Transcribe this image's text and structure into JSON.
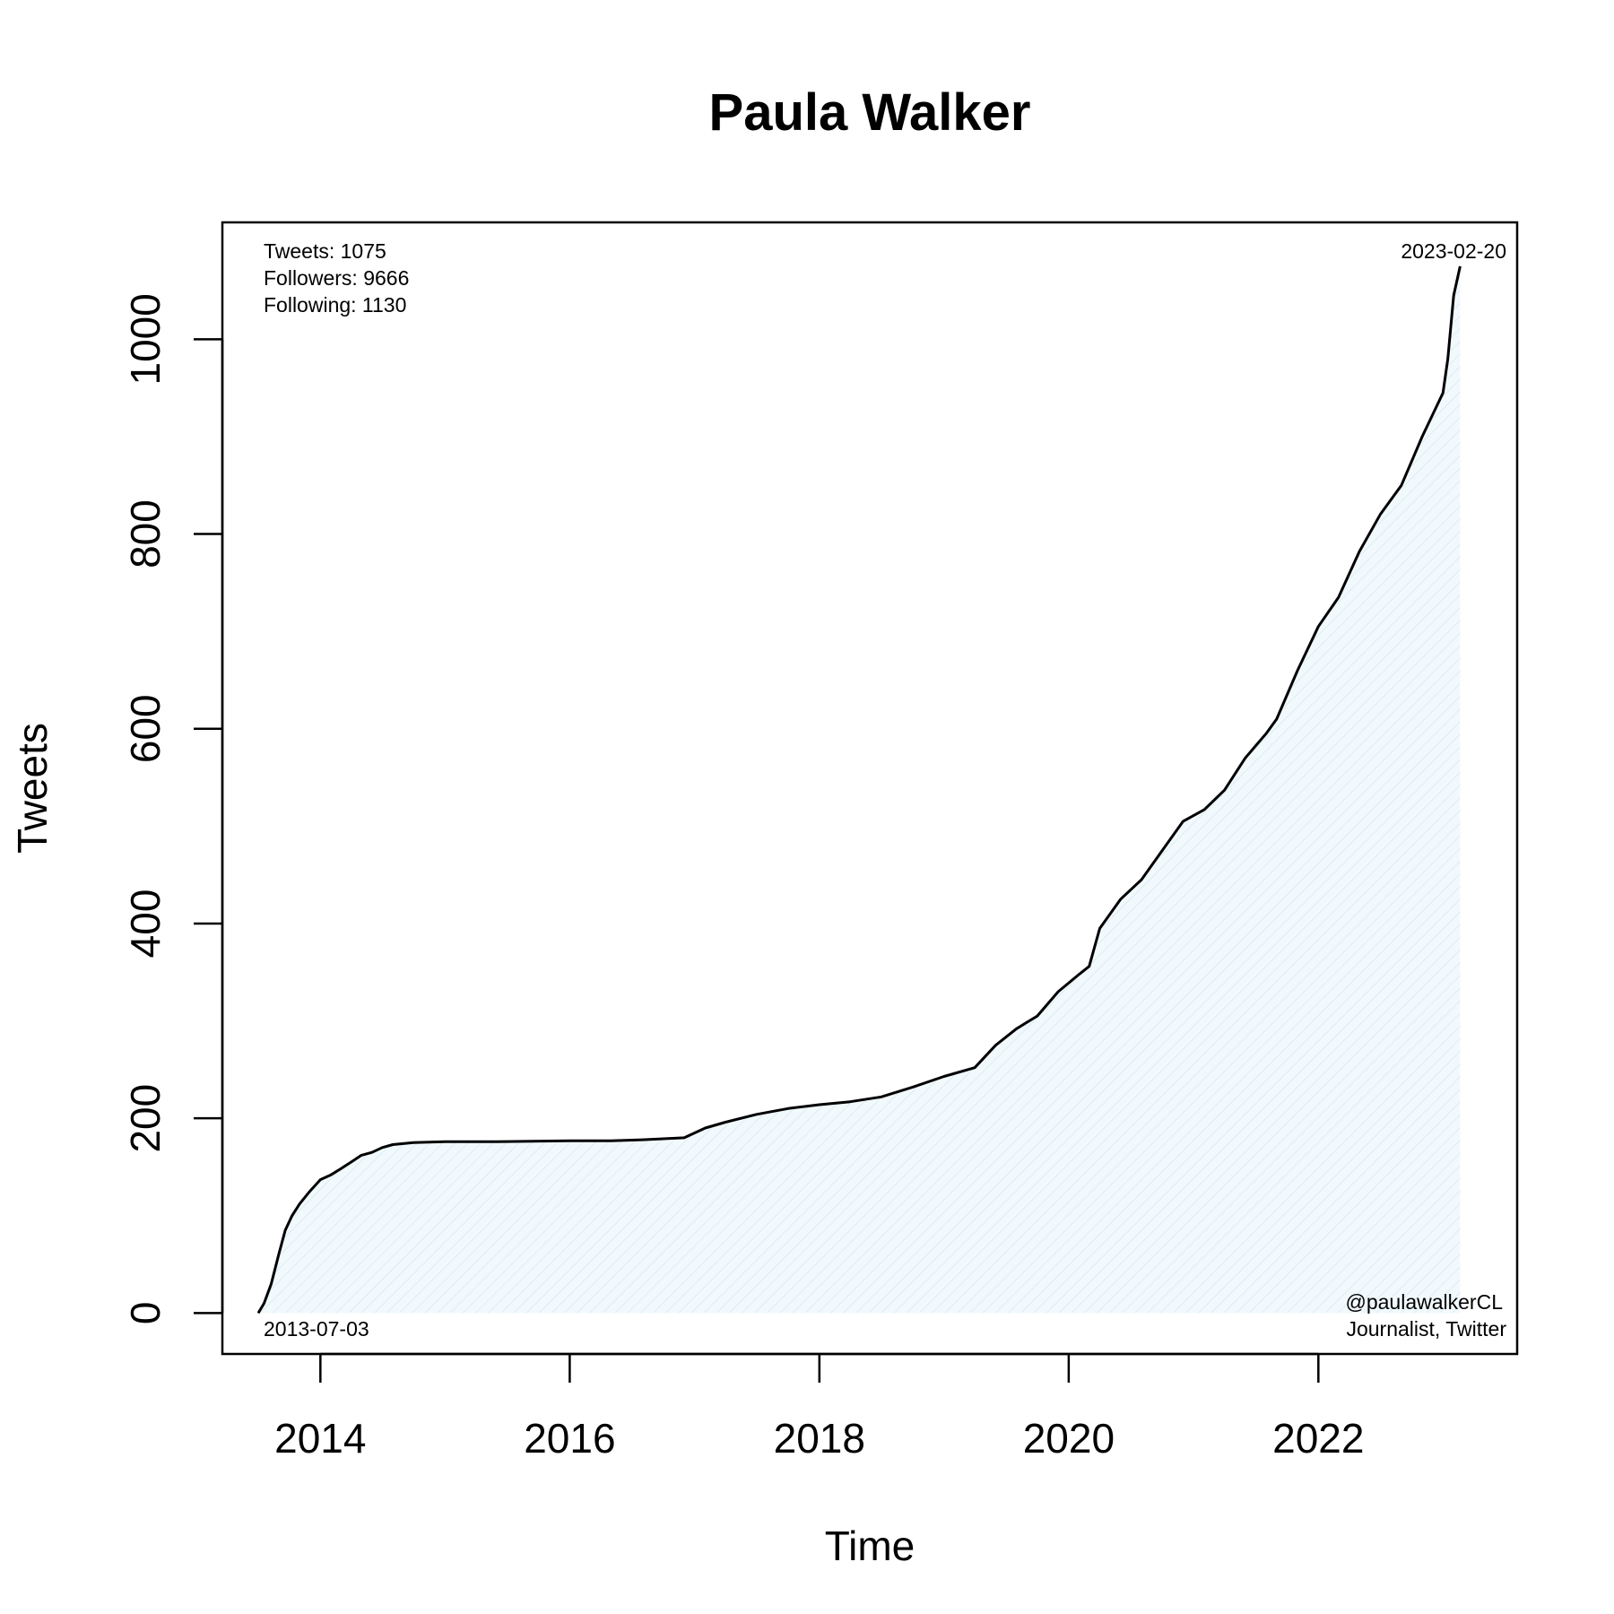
{
  "chart_data": {
    "type": "area",
    "title": "Paula Walker",
    "xlabel": "Time",
    "ylabel": "Tweets",
    "xlim": [
      "2013-03-20",
      "2023-08-06"
    ],
    "ylim": [
      -42,
      1120
    ],
    "x_ticks": [
      "2014",
      "2016",
      "2018",
      "2020",
      "2022"
    ],
    "y_ticks": [
      "0",
      "200",
      "400",
      "600",
      "800",
      "1000"
    ],
    "grid": false,
    "fill_color": "#e8f4f8",
    "line_color": "#000000",
    "stats": {
      "tweets": "Tweets: 1075",
      "followers": "Followers: 9666",
      "following": "Following: 1130"
    },
    "start_label": "2013-07-03",
    "end_label": "2023-02-20",
    "handle": "@paulawalkerCL",
    "description": "Journalist, Twitter",
    "series": [
      {
        "x": [
          "2013-07-03",
          "2013-07-20",
          "2013-08-10",
          "2013-09-01",
          "2013-09-20",
          "2013-10-10",
          "2013-11-01",
          "2013-12-01",
          "2014-01-01",
          "2014-02-01",
          "2014-03-01",
          "2014-04-01",
          "2014-05-01",
          "2014-06-01",
          "2014-07-01",
          "2014-08-01",
          "2014-10-01",
          "2015-01-01",
          "2015-06-01",
          "2016-01-01",
          "2016-05-01",
          "2016-08-01",
          "2016-12-01",
          "2017-02-01",
          "2017-04-01",
          "2017-07-01",
          "2017-10-01",
          "2018-01-01",
          "2018-04-01",
          "2018-07-01",
          "2018-10-01",
          "2019-01-01",
          "2019-04-01",
          "2019-06-01",
          "2019-08-01",
          "2019-10-01",
          "2019-12-01",
          "2020-02-01",
          "2020-03-01",
          "2020-04-01",
          "2020-06-01",
          "2020-08-01",
          "2020-10-01",
          "2020-12-01",
          "2021-02-01",
          "2021-04-01",
          "2021-06-01",
          "2021-08-01",
          "2021-09-01",
          "2021-11-01",
          "2022-01-01",
          "2022-03-01",
          "2022-05-01",
          "2022-07-01",
          "2022-09-01",
          "2022-11-01",
          "2023-01-01",
          "2023-01-15",
          "2023-02-01",
          "2023-02-20"
        ],
        "values": [
          0,
          10,
          30,
          60,
          85,
          100,
          112,
          125,
          137,
          142,
          148,
          155,
          162,
          165,
          170,
          173,
          175,
          176,
          176,
          177,
          177,
          178,
          180,
          190,
          196,
          204,
          210,
          214,
          217,
          222,
          232,
          243,
          252,
          275,
          292,
          305,
          330,
          348,
          356,
          395,
          425,
          445,
          475,
          505,
          517,
          537,
          570,
          595,
          610,
          660,
          705,
          735,
          782,
          820,
          850,
          900,
          945,
          980,
          1045,
          1075
        ]
      }
    ]
  }
}
